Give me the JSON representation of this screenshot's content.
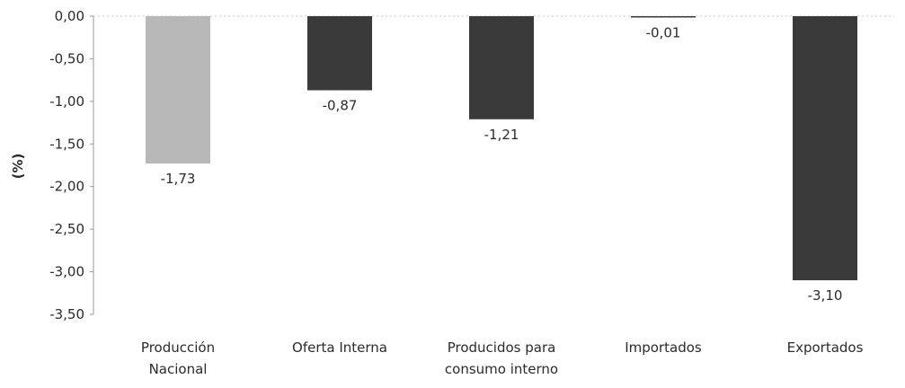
{
  "chart_data": {
    "type": "bar",
    "title": "",
    "xlabel": "",
    "ylabel": "(%)",
    "ylim": [
      -3.5,
      0
    ],
    "yticks": [
      0,
      -0.5,
      -1.0,
      -1.5,
      -2.0,
      -2.5,
      -3.0,
      -3.5
    ],
    "ytick_labels": [
      "0,00",
      "-0,50",
      "-1,00",
      "-1,50",
      "-2,00",
      "-2,50",
      "-3,00",
      "-3,50"
    ],
    "grid": false,
    "legend": "none",
    "categories": [
      [
        "Producción",
        "Nacional"
      ],
      [
        "Oferta Interna"
      ],
      [
        "Producidos para",
        "consumo interno"
      ],
      [
        "Importados"
      ],
      [
        "Exportados"
      ]
    ],
    "values": [
      -1.73,
      -0.87,
      -1.21,
      -0.01,
      -3.1
    ],
    "value_labels": [
      "-1,73",
      "-0,87",
      "-1,21",
      "-0,01",
      "-3,10"
    ],
    "bar_colors": [
      "#b8b8b8",
      "#3a3a3a",
      "#3a3a3a",
      "#3a3a3a",
      "#3a3a3a"
    ]
  }
}
